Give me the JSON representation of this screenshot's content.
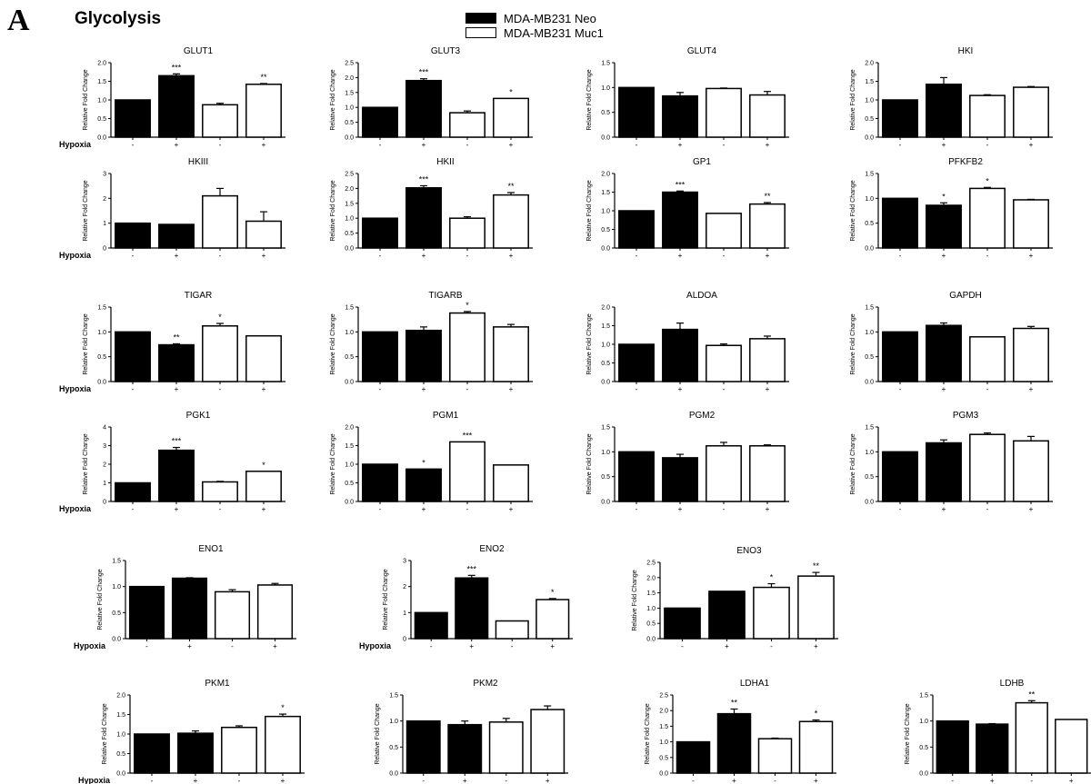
{
  "figure": {
    "panel_letter": "A",
    "title": "Glycolysis",
    "row_label": "Hypoxia",
    "y_axis_label": "Relative Fold Change"
  },
  "legend": {
    "items": [
      {
        "label": "MDA-MB231 Neo",
        "fill": "#000000"
      },
      {
        "label": "MDA-MB231 Muc1",
        "fill": "#ffffff"
      }
    ]
  },
  "x_tick_labels": [
    "-",
    "+",
    "-",
    "+"
  ],
  "chart_data": [
    {
      "type": "bar",
      "title": "GLUT1",
      "ylim": [
        0,
        2.0
      ],
      "yticks": [
        "0.0",
        "0.5",
        "1.0",
        "1.5",
        "2.0"
      ],
      "values": [
        1.0,
        1.65,
        0.87,
        1.42
      ],
      "errors": [
        0,
        0.05,
        0.04,
        0.02
      ],
      "annotations": [
        "",
        "***",
        "",
        "**"
      ]
    },
    {
      "type": "bar",
      "title": "GLUT3",
      "ylim": [
        0,
        2.5
      ],
      "yticks": [
        "0.0",
        "0.5",
        "1.0",
        "1.5",
        "2.0",
        "2.5"
      ],
      "values": [
        1.0,
        1.9,
        0.82,
        1.3
      ],
      "errors": [
        0,
        0.06,
        0.06,
        0
      ],
      "annotations": [
        "",
        "***",
        "",
        "*"
      ]
    },
    {
      "type": "bar",
      "title": "GLUT4",
      "ylim": [
        0,
        1.5
      ],
      "yticks": [
        "0.0",
        "0.5",
        "1.0",
        "1.5"
      ],
      "values": [
        1.0,
        0.83,
        0.98,
        0.85
      ],
      "errors": [
        0,
        0.07,
        0.01,
        0.07
      ],
      "annotations": [
        "",
        "",
        "",
        ""
      ]
    },
    {
      "type": "bar",
      "title": "HKI",
      "ylim": [
        0,
        2.0
      ],
      "yticks": [
        "0.0",
        "0.5",
        "1.0",
        "1.5",
        "2.0"
      ],
      "values": [
        1.0,
        1.42,
        1.12,
        1.34
      ],
      "errors": [
        0,
        0.18,
        0.02,
        0.02
      ],
      "annotations": [
        "",
        "",
        "",
        ""
      ]
    },
    {
      "type": "bar",
      "title": "HKIII",
      "ylim": [
        0,
        3
      ],
      "yticks": [
        "0",
        "1",
        "2",
        "3"
      ],
      "values": [
        1.0,
        0.95,
        2.1,
        1.08
      ],
      "errors": [
        0,
        0,
        0.3,
        0.38
      ],
      "annotations": [
        "",
        "",
        "",
        ""
      ]
    },
    {
      "type": "bar",
      "title": "HKII",
      "ylim": [
        0,
        2.5
      ],
      "yticks": [
        "0.0",
        "0.5",
        "1.0",
        "1.5",
        "2.0",
        "2.5"
      ],
      "values": [
        1.0,
        2.02,
        1.0,
        1.78
      ],
      "errors": [
        0,
        0.07,
        0.05,
        0.08
      ],
      "annotations": [
        "",
        "***",
        "",
        "**"
      ]
    },
    {
      "type": "bar",
      "title": "GP1",
      "ylim": [
        0,
        2.0
      ],
      "yticks": [
        "0.0",
        "0.5",
        "1.0",
        "1.5",
        "2.0"
      ],
      "values": [
        1.0,
        1.5,
        0.93,
        1.18
      ],
      "errors": [
        0,
        0.03,
        0,
        0.04
      ],
      "annotations": [
        "",
        "***",
        "",
        "**"
      ]
    },
    {
      "type": "bar",
      "title": "PFKFB2",
      "ylim": [
        0,
        1.5
      ],
      "yticks": [
        "0.0",
        "0.5",
        "1.0",
        "1.5"
      ],
      "values": [
        1.0,
        0.86,
        1.2,
        0.97
      ],
      "errors": [
        0,
        0.05,
        0.02,
        0.01
      ],
      "annotations": [
        "",
        "*",
        "*",
        ""
      ]
    },
    {
      "type": "bar",
      "title": "TIGAR",
      "ylim": [
        0,
        1.5
      ],
      "yticks": [
        "0.0",
        "0.5",
        "1.0",
        "1.5"
      ],
      "values": [
        1.0,
        0.74,
        1.12,
        0.92
      ],
      "errors": [
        0,
        0.02,
        0.05,
        0
      ],
      "annotations": [
        "",
        "**",
        "*",
        ""
      ]
    },
    {
      "type": "bar",
      "title": "TIGARB",
      "ylim": [
        0,
        1.5
      ],
      "yticks": [
        "0.0",
        "0.5",
        "1.0",
        "1.5"
      ],
      "values": [
        1.0,
        1.03,
        1.38,
        1.1
      ],
      "errors": [
        0,
        0.07,
        0.03,
        0.05
      ],
      "annotations": [
        "",
        "",
        "*",
        ""
      ]
    },
    {
      "type": "bar",
      "title": "ALDOA",
      "ylim": [
        0,
        2.0
      ],
      "yticks": [
        "0.0",
        "0.5",
        "1.0",
        "1.5",
        "2.0"
      ],
      "values": [
        1.0,
        1.4,
        0.97,
        1.15
      ],
      "errors": [
        0,
        0.17,
        0.04,
        0.07
      ],
      "annotations": [
        "",
        "",
        "",
        ""
      ]
    },
    {
      "type": "bar",
      "title": "GAPDH",
      "ylim": [
        0,
        1.5
      ],
      "yticks": [
        "0.0",
        "0.5",
        "1.0",
        "1.5"
      ],
      "values": [
        1.0,
        1.13,
        0.9,
        1.07
      ],
      "errors": [
        0,
        0.05,
        0,
        0.04
      ],
      "annotations": [
        "",
        "",
        "",
        ""
      ]
    },
    {
      "type": "bar",
      "title": "PGK1",
      "ylim": [
        0,
        4
      ],
      "yticks": [
        "0",
        "1",
        "2",
        "3",
        "4"
      ],
      "values": [
        1.0,
        2.75,
        1.05,
        1.62
      ],
      "errors": [
        0,
        0.15,
        0.03,
        0
      ],
      "annotations": [
        "",
        "***",
        "",
        "*"
      ]
    },
    {
      "type": "bar",
      "title": "PGM1",
      "ylim": [
        0,
        2.0
      ],
      "yticks": [
        "0.0",
        "0.5",
        "1.0",
        "1.5",
        "2.0"
      ],
      "values": [
        1.0,
        0.87,
        1.6,
        0.98
      ],
      "errors": [
        0,
        0,
        0,
        0
      ],
      "annotations": [
        "",
        "*",
        "***",
        ""
      ]
    },
    {
      "type": "bar",
      "title": "PGM2",
      "ylim": [
        0,
        1.5
      ],
      "yticks": [
        "0.0",
        "0.5",
        "1.0",
        "1.5"
      ],
      "values": [
        1.0,
        0.88,
        1.12,
        1.12
      ],
      "errors": [
        0,
        0.07,
        0.07,
        0.02
      ],
      "annotations": [
        "",
        "",
        "",
        ""
      ]
    },
    {
      "type": "bar",
      "title": "PGM3",
      "ylim": [
        0,
        1.5
      ],
      "yticks": [
        "0.0",
        "0.5",
        "1.0",
        "1.5"
      ],
      "values": [
        1.0,
        1.18,
        1.35,
        1.22
      ],
      "errors": [
        0,
        0.06,
        0.03,
        0.09
      ],
      "annotations": [
        "",
        "",
        "",
        ""
      ]
    },
    {
      "type": "bar",
      "title": "ENO1",
      "ylim": [
        0,
        1.5
      ],
      "yticks": [
        "0.0",
        "0.5",
        "1.0",
        "1.5"
      ],
      "values": [
        1.0,
        1.16,
        0.9,
        1.03
      ],
      "errors": [
        0,
        0.01,
        0.04,
        0.03
      ],
      "annotations": [
        "",
        "",
        "",
        ""
      ]
    },
    {
      "type": "bar",
      "title": "ENO2",
      "ylim": [
        0,
        3
      ],
      "yticks": [
        "0",
        "1",
        "2",
        "3"
      ],
      "values": [
        1.0,
        2.33,
        0.68,
        1.5
      ],
      "errors": [
        0,
        0.1,
        0,
        0.04
      ],
      "annotations": [
        "",
        "***",
        "",
        "*"
      ]
    },
    {
      "type": "bar",
      "title": "ENO3",
      "ylim": [
        0,
        2.5
      ],
      "yticks": [
        "0.0",
        "0.5",
        "1.0",
        "1.5",
        "2.0",
        "2.5"
      ],
      "values": [
        1.0,
        1.55,
        1.68,
        2.05
      ],
      "errors": [
        0,
        0,
        0.12,
        0.12
      ],
      "annotations": [
        "",
        "",
        "*",
        "**"
      ]
    },
    {
      "type": "bar",
      "title": "PKM1",
      "ylim": [
        0,
        2.0
      ],
      "yticks": [
        "0.0",
        "0.5",
        "1.0",
        "1.5",
        "2.0"
      ],
      "values": [
        1.0,
        1.02,
        1.17,
        1.45
      ],
      "errors": [
        0,
        0.06,
        0.04,
        0.06
      ],
      "annotations": [
        "",
        "",
        "",
        "*"
      ]
    },
    {
      "type": "bar",
      "title": "PKM2",
      "ylim": [
        0,
        1.5
      ],
      "yticks": [
        "0.0",
        "0.5",
        "1.0",
        "1.5"
      ],
      "values": [
        1.0,
        0.93,
        0.98,
        1.22
      ],
      "errors": [
        0,
        0.07,
        0.07,
        0.07
      ],
      "annotations": [
        "",
        "",
        "",
        ""
      ]
    },
    {
      "type": "bar",
      "title": "LDHA1",
      "ylim": [
        0,
        2.5
      ],
      "yticks": [
        "0.0",
        "0.5",
        "1.0",
        "1.5",
        "2.0",
        "2.5"
      ],
      "values": [
        1.0,
        1.9,
        1.1,
        1.65
      ],
      "errors": [
        0,
        0.15,
        0.02,
        0.05
      ],
      "annotations": [
        "",
        "**",
        "",
        "*"
      ]
    },
    {
      "type": "bar",
      "title": "LDHB",
      "ylim": [
        0,
        1.5
      ],
      "yticks": [
        "0.0",
        "0.5",
        "1.0",
        "1.5"
      ],
      "values": [
        1.0,
        0.94,
        1.35,
        1.03
      ],
      "errors": [
        0,
        0.01,
        0.04,
        0
      ],
      "annotations": [
        "",
        "",
        "**",
        ""
      ]
    }
  ]
}
